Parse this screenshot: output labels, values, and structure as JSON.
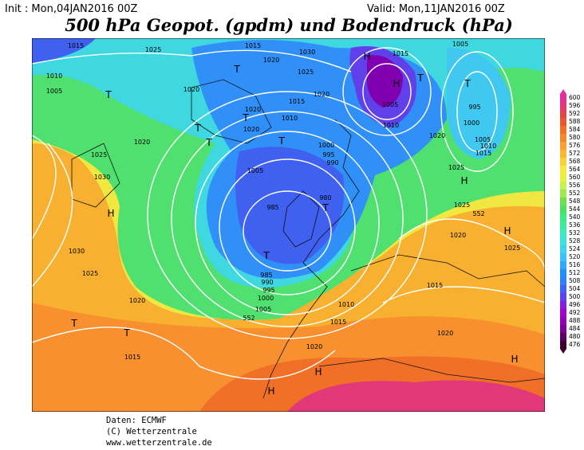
{
  "header": {
    "init": "Init : Mon,04JAN2016 00Z",
    "valid": "Valid: Mon,11JAN2016 00Z",
    "title": "500 hPa Geopot. (gpdm) und Bodendruck (hPa)"
  },
  "colorbar": {
    "ticks": [
      476,
      480,
      484,
      488,
      492,
      496,
      500,
      504,
      508,
      512,
      516,
      520,
      524,
      528,
      532,
      536,
      540,
      544,
      548,
      552,
      556,
      560,
      564,
      568,
      572,
      576,
      580,
      584,
      588,
      592,
      596,
      600
    ],
    "colors": [
      "#3d0030",
      "#5a0060",
      "#7a0090",
      "#9000b0",
      "#a000c8",
      "#8020d8",
      "#6040e8",
      "#4060f0",
      "#3080f8",
      "#2090f8",
      "#30a8f8",
      "#40c0f8",
      "#40d0f0",
      "#40e0e0",
      "#40e8c0",
      "#40e8a0",
      "#40e880",
      "#50e060",
      "#70e050",
      "#a0e850",
      "#c8f050",
      "#e8f040",
      "#f8e840",
      "#f8d040",
      "#f8b830",
      "#f8a030",
      "#f08830",
      "#f07028",
      "#e85830",
      "#e04848",
      "#e03878",
      "#e030a0"
    ]
  },
  "map": {
    "isobar_labels": [
      "1015",
      "1025",
      "1015",
      "1030",
      "1010",
      "1005",
      "1020",
      "1025",
      "1020",
      "1020",
      "1015",
      "1010",
      "1020",
      "1020",
      "1005",
      "1010",
      "1015",
      "1005",
      "995",
      "1000",
      "1005",
      "1010",
      "1015",
      "1020",
      "1025",
      "1020",
      "1025",
      "1030",
      "1000",
      "995",
      "990",
      "1005",
      "980",
      "985",
      "1025",
      "552",
      "1020",
      "1025",
      "1030",
      "1025",
      "1020",
      "985",
      "990",
      "995",
      "1000",
      "1005",
      "552",
      "1010",
      "1015",
      "1015",
      "1020",
      "1020",
      "1015"
    ],
    "centers": [
      "T",
      "T",
      "T",
      "T",
      "T",
      "T",
      "H",
      "T",
      "H",
      "T",
      "H",
      "T",
      "T",
      "H",
      "H",
      "T",
      "T",
      "H",
      "H",
      "H"
    ]
  },
  "footer": [
    "Daten: ECMWF",
    "(C) Wetterzentrale",
    "www.wetterzentrale.de"
  ]
}
